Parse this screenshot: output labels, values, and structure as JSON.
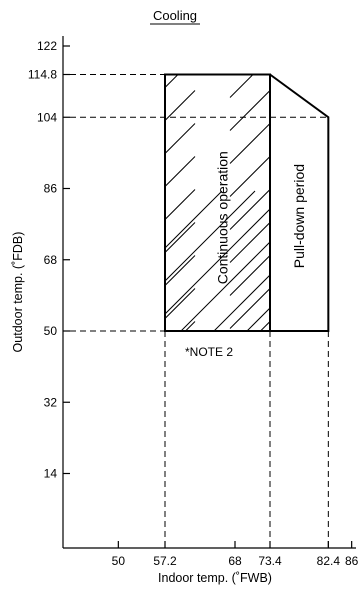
{
  "title": "Cooling",
  "x_axis": {
    "label": "Indoor temp. (˚FWB)",
    "ticks": [
      {
        "value": 50,
        "label": "50"
      },
      {
        "value": 57.2,
        "label": "57.2"
      },
      {
        "value": 68,
        "label": "68"
      },
      {
        "value": 73.4,
        "label": "73.4"
      },
      {
        "value": 82.4,
        "label": "82.4"
      },
      {
        "value": 86,
        "label": "86"
      }
    ]
  },
  "y_axis": {
    "label": "Outdoor temp. (˚FDB)",
    "ticks": [
      {
        "value": 14,
        "label": "14"
      },
      {
        "value": 32,
        "label": "32"
      },
      {
        "value": 50,
        "label": "50"
      },
      {
        "value": 68,
        "label": "68"
      },
      {
        "value": 86,
        "label": "86"
      },
      {
        "value": 104,
        "label": "104"
      },
      {
        "value": 114.8,
        "label": "114.8"
      },
      {
        "value": 122,
        "label": "122"
      }
    ]
  },
  "regions": {
    "continuous": {
      "label": "Continuous operation",
      "fill": "hatched",
      "polygon": [
        [
          57.2,
          50
        ],
        [
          73.4,
          50
        ],
        [
          73.4,
          114.8
        ],
        [
          57.2,
          114.8
        ]
      ]
    },
    "pulldown": {
      "label": "Pull-down period",
      "polygon": [
        [
          73.4,
          50
        ],
        [
          82.4,
          50
        ],
        [
          82.4,
          104
        ],
        [
          73.4,
          114.8
        ]
      ]
    }
  },
  "note": "*NOTE 2"
}
